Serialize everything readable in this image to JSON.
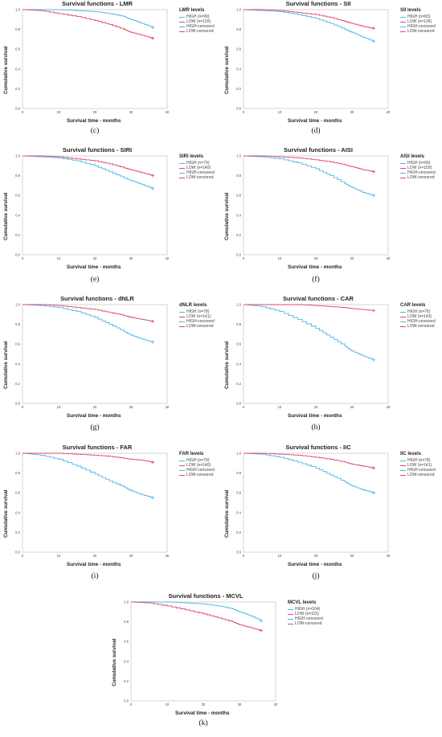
{
  "legend_labels": [
    "HIGH-censored",
    "LOW-censored"
  ],
  "colors": {
    "high": "#4fb6e8",
    "low": "#e0456e"
  },
  "x_ticks": [
    "0",
    "10",
    "20",
    "30",
    "40"
  ],
  "y_ticks": [
    "0.0",
    "0.2",
    "0.4",
    "0.6",
    "0.8",
    "1.0"
  ],
  "xlabel": "Survival time - months",
  "ylabel": "Cumulative survival",
  "chart_data": [
    {
      "type": "line",
      "caption": "(c)",
      "title": "Survival functions - LMR",
      "legend_title": "LMR levels",
      "xlim": [
        0,
        40
      ],
      "ylim": [
        0,
        1
      ],
      "series": [
        {
          "name": "HIGH (n=99)",
          "x": [
            0,
            5,
            10,
            15,
            20,
            24,
            28,
            30,
            33,
            36
          ],
          "values": [
            1.0,
            1.0,
            1.0,
            0.99,
            0.98,
            0.96,
            0.93,
            0.9,
            0.86,
            0.82
          ]
        },
        {
          "name": "LOW (n=120)",
          "x": [
            0,
            5,
            10,
            15,
            20,
            24,
            28,
            30,
            33,
            36
          ],
          "values": [
            1.0,
            0.99,
            0.96,
            0.93,
            0.89,
            0.85,
            0.8,
            0.77,
            0.74,
            0.71
          ]
        }
      ]
    },
    {
      "type": "line",
      "caption": "(d)",
      "title": "Survival functions - SII",
      "legend_title": "SII levels",
      "xlim": [
        0,
        40
      ],
      "ylim": [
        0,
        1
      ],
      "series": [
        {
          "name": "HIGH (n=83)",
          "x": [
            0,
            5,
            10,
            15,
            20,
            24,
            28,
            30,
            33,
            36
          ],
          "values": [
            1.0,
            0.99,
            0.98,
            0.95,
            0.91,
            0.86,
            0.8,
            0.77,
            0.72,
            0.68
          ]
        },
        {
          "name": "LOW (n=136)",
          "x": [
            0,
            5,
            10,
            15,
            20,
            24,
            28,
            30,
            33,
            36
          ],
          "values": [
            1.0,
            1.0,
            0.99,
            0.97,
            0.95,
            0.92,
            0.88,
            0.86,
            0.83,
            0.81
          ]
        }
      ]
    },
    {
      "type": "line",
      "caption": "(e)",
      "title": "Survival functions - SIRI",
      "legend_title": "SIRI levels",
      "xlim": [
        0,
        40
      ],
      "ylim": [
        0,
        1
      ],
      "series": [
        {
          "name": "HIGH (n=79)",
          "x": [
            0,
            5,
            10,
            15,
            20,
            24,
            28,
            30,
            33,
            36
          ],
          "values": [
            1.0,
            0.99,
            0.98,
            0.95,
            0.9,
            0.84,
            0.78,
            0.75,
            0.71,
            0.67
          ]
        },
        {
          "name": "LOW (n=140)",
          "x": [
            0,
            5,
            10,
            15,
            20,
            24,
            28,
            30,
            33,
            36
          ],
          "values": [
            1.0,
            1.0,
            0.99,
            0.97,
            0.95,
            0.92,
            0.88,
            0.86,
            0.83,
            0.8
          ]
        }
      ]
    },
    {
      "type": "line",
      "caption": "(f)",
      "title": "Survival functions - AISI",
      "legend_title": "AISI levels",
      "xlim": [
        0,
        40
      ],
      "ylim": [
        0,
        1
      ],
      "series": [
        {
          "name": "HIGH (n=69)",
          "x": [
            0,
            5,
            10,
            15,
            20,
            24,
            28,
            30,
            33,
            36
          ],
          "values": [
            1.0,
            0.99,
            0.97,
            0.93,
            0.87,
            0.8,
            0.72,
            0.68,
            0.63,
            0.6
          ]
        },
        {
          "name": "LOW (n=150)",
          "x": [
            0,
            5,
            10,
            15,
            20,
            24,
            28,
            30,
            33,
            36
          ],
          "values": [
            1.0,
            1.0,
            0.99,
            0.98,
            0.96,
            0.94,
            0.91,
            0.89,
            0.86,
            0.84
          ]
        }
      ]
    },
    {
      "type": "line",
      "caption": "(g)",
      "title": "Survival functions - dNLR",
      "legend_title": "dNLR levels",
      "xlim": [
        0,
        40
      ],
      "ylim": [
        0,
        1
      ],
      "series": [
        {
          "name": "HIGH (n=78)",
          "x": [
            0,
            5,
            10,
            15,
            20,
            24,
            28,
            30,
            33,
            36
          ],
          "values": [
            1.0,
            0.99,
            0.97,
            0.93,
            0.87,
            0.8,
            0.73,
            0.69,
            0.65,
            0.62
          ]
        },
        {
          "name": "LOW (n=141)",
          "x": [
            0,
            5,
            10,
            15,
            20,
            24,
            28,
            30,
            33,
            36
          ],
          "values": [
            1.0,
            1.0,
            0.99,
            0.97,
            0.95,
            0.92,
            0.89,
            0.87,
            0.85,
            0.83
          ]
        }
      ]
    },
    {
      "type": "line",
      "caption": "(h)",
      "title": "Survival functions - CAR",
      "legend_title": "CAR levels",
      "xlim": [
        0,
        40
      ],
      "ylim": [
        0,
        1
      ],
      "series": [
        {
          "name": "HIGH (n=76)",
          "x": [
            0,
            5,
            10,
            15,
            20,
            24,
            28,
            30,
            33,
            36
          ],
          "values": [
            1.0,
            0.98,
            0.93,
            0.85,
            0.76,
            0.67,
            0.58,
            0.53,
            0.48,
            0.44
          ]
        },
        {
          "name": "LOW (n=143)",
          "x": [
            0,
            5,
            10,
            15,
            20,
            24,
            28,
            30,
            33,
            36
          ],
          "values": [
            1.0,
            1.0,
            1.0,
            1.0,
            0.99,
            0.98,
            0.97,
            0.96,
            0.95,
            0.94
          ]
        }
      ]
    },
    {
      "type": "line",
      "caption": "(i)",
      "title": "Survival functions - FAR",
      "legend_title": "FAR levels",
      "xlim": [
        0,
        40
      ],
      "ylim": [
        0,
        1
      ],
      "series": [
        {
          "name": "HIGH (n=79)",
          "x": [
            0,
            5,
            10,
            15,
            20,
            24,
            28,
            30,
            33,
            36
          ],
          "values": [
            1.0,
            0.98,
            0.94,
            0.87,
            0.79,
            0.72,
            0.66,
            0.62,
            0.58,
            0.55
          ]
        },
        {
          "name": "LOW (n=140)",
          "x": [
            0,
            5,
            10,
            15,
            20,
            24,
            28,
            30,
            33,
            36
          ],
          "values": [
            1.0,
            1.0,
            1.0,
            0.99,
            0.98,
            0.97,
            0.95,
            0.94,
            0.93,
            0.91
          ]
        }
      ]
    },
    {
      "type": "line",
      "caption": "(j)",
      "title": "Survival functions - IIC",
      "legend_title": "IIC levels",
      "xlim": [
        0,
        40
      ],
      "ylim": [
        0,
        1
      ],
      "series": [
        {
          "name": "HIGH (n=78)",
          "x": [
            0,
            5,
            10,
            15,
            20,
            24,
            28,
            30,
            33,
            36
          ],
          "values": [
            1.0,
            0.99,
            0.96,
            0.91,
            0.85,
            0.78,
            0.71,
            0.67,
            0.63,
            0.6
          ]
        },
        {
          "name": "LOW (n=141)",
          "x": [
            0,
            5,
            10,
            15,
            20,
            24,
            28,
            30,
            33,
            36
          ],
          "values": [
            1.0,
            1.0,
            0.99,
            0.98,
            0.96,
            0.94,
            0.91,
            0.89,
            0.87,
            0.85
          ]
        }
      ]
    },
    {
      "type": "line",
      "caption": "(k)",
      "title": "Survival functions - MCVL",
      "legend_title": "MCVL levels",
      "xlim": [
        0,
        40
      ],
      "ylim": [
        0,
        1
      ],
      "series": [
        {
          "name": "HIGH (n=104)",
          "x": [
            0,
            5,
            10,
            15,
            20,
            24,
            28,
            30,
            33,
            36
          ],
          "values": [
            1.0,
            1.0,
            1.0,
            0.99,
            0.98,
            0.96,
            0.93,
            0.9,
            0.86,
            0.81
          ]
        },
        {
          "name": "LOW (n=115)",
          "x": [
            0,
            5,
            10,
            15,
            20,
            24,
            28,
            30,
            33,
            36
          ],
          "values": [
            1.0,
            0.99,
            0.96,
            0.92,
            0.88,
            0.84,
            0.8,
            0.77,
            0.74,
            0.71
          ]
        }
      ]
    }
  ]
}
